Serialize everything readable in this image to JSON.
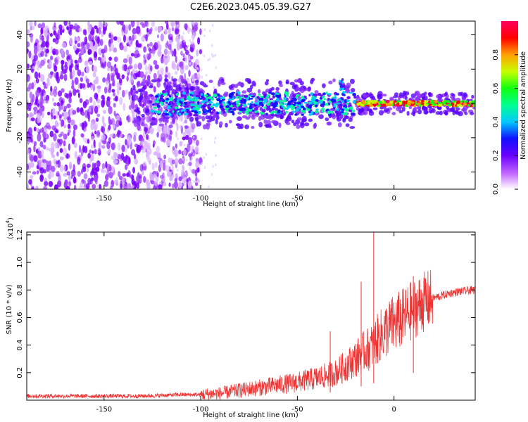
{
  "title": "C2E6.2023.045.05.39.G27",
  "chart_data": [
    {
      "type": "heatmap",
      "title": "",
      "xlabel": "Height of straight line (km)",
      "ylabel": "Frequency (Hz)",
      "xlim": [
        -190,
        42
      ],
      "ylim": [
        -50,
        48
      ],
      "xticks": [
        -150,
        -100,
        -50,
        0
      ],
      "yticks": [
        -40,
        -20,
        0,
        20,
        40
      ],
      "colorbar": {
        "label": "Normalized spectral amplitude",
        "range": [
          0,
          1
        ],
        "ticks": [
          "0.0",
          "0.2",
          "0.4",
          "0.6",
          "0.8"
        ],
        "colors": [
          "#ffffff",
          "#c060ff",
          "#6a00ff",
          "#1010ff",
          "#00c8ff",
          "#00ff90",
          "#10ff10",
          "#c8ff00",
          "#ffa000",
          "#ff0000",
          "#ff0060"
        ]
      },
      "description_regions": [
        {
          "x_range": [
            -190,
            -105
          ],
          "freq_range": [
            -50,
            48
          ],
          "amplitude": 0.1
        },
        {
          "x_range": [
            -105,
            -20
          ],
          "freq_range": [
            -8,
            8
          ],
          "amplitude": 0.35
        },
        {
          "x_range": [
            -20,
            42
          ],
          "freq_range": [
            -2,
            2
          ],
          "amplitude": 0.85
        }
      ]
    },
    {
      "type": "line",
      "title": "",
      "xlabel": "Height of straight line (km)",
      "ylabel": "SNR (10 * v/v)",
      "y_multiplier": "(x10",
      "y_multiplier_exp": "4",
      "xlim": [
        -190,
        42
      ],
      "ylim": [
        0,
        1.22
      ],
      "xticks": [
        -150,
        -100,
        -50,
        0
      ],
      "yticks": [
        "0.2",
        "0.4",
        "0.6",
        "0.8",
        "1.0",
        "1.2"
      ],
      "series": [
        {
          "color": "#ee3333",
          "x": [
            -190,
            -170,
            -150,
            -130,
            -110,
            -100,
            -90,
            -80,
            -70,
            -60,
            -50,
            -40,
            -30,
            -25,
            -20,
            -15,
            -12,
            -10,
            -8,
            -5,
            0,
            5,
            10,
            15,
            20,
            25,
            30,
            35,
            42
          ],
          "y": [
            0.03,
            0.03,
            0.03,
            0.03,
            0.04,
            0.04,
            0.05,
            0.07,
            0.09,
            0.11,
            0.13,
            0.16,
            0.2,
            0.25,
            0.3,
            0.36,
            0.38,
            0.42,
            0.45,
            0.5,
            0.55,
            0.6,
            0.66,
            0.71,
            0.74,
            0.76,
            0.78,
            0.79,
            0.8
          ]
        }
      ],
      "spikes": [
        {
          "x": -10.5,
          "y": 1.22
        },
        {
          "x": -17,
          "y": 0.86
        },
        {
          "x": 10,
          "y": 0.9
        },
        {
          "x": -33,
          "y": 0.5
        }
      ]
    }
  ]
}
